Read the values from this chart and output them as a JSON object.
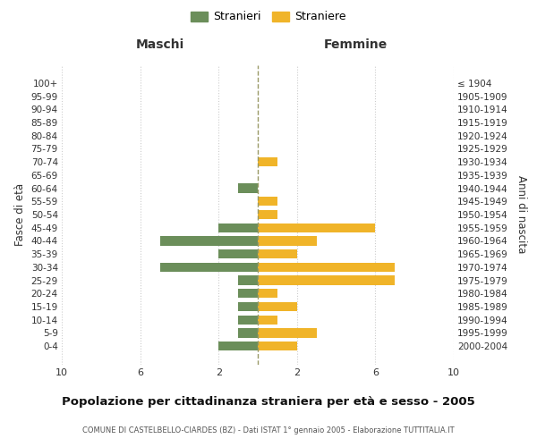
{
  "age_groups": [
    "100+",
    "95-99",
    "90-94",
    "85-89",
    "80-84",
    "75-79",
    "70-74",
    "65-69",
    "60-64",
    "55-59",
    "50-54",
    "45-49",
    "40-44",
    "35-39",
    "30-34",
    "25-29",
    "20-24",
    "15-19",
    "10-14",
    "5-9",
    "0-4"
  ],
  "birth_years": [
    "≤ 1904",
    "1905-1909",
    "1910-1914",
    "1915-1919",
    "1920-1924",
    "1925-1929",
    "1930-1934",
    "1935-1939",
    "1940-1944",
    "1945-1949",
    "1950-1954",
    "1955-1959",
    "1960-1964",
    "1965-1969",
    "1970-1974",
    "1975-1979",
    "1980-1984",
    "1985-1989",
    "1990-1994",
    "1995-1999",
    "2000-2004"
  ],
  "males": [
    0,
    0,
    0,
    0,
    0,
    0,
    0,
    0,
    1,
    0,
    0,
    2,
    5,
    2,
    5,
    1,
    1,
    1,
    1,
    1,
    2
  ],
  "females": [
    0,
    0,
    0,
    0,
    0,
    0,
    1,
    0,
    0,
    1,
    1,
    6,
    3,
    2,
    7,
    7,
    1,
    2,
    1,
    3,
    2
  ],
  "male_color": "#6b8e5a",
  "female_color": "#f0b429",
  "background_color": "#ffffff",
  "grid_color": "#cccccc",
  "center_line_color": "#999966",
  "title": "Popolazione per cittadinanza straniera per età e sesso - 2005",
  "subtitle": "COMUNE DI CASTELBELLO-CIARDES (BZ) - Dati ISTAT 1° gennaio 2005 - Elaborazione TUTTITALIA.IT",
  "xlabel_left": "Maschi",
  "xlabel_right": "Femmine",
  "ylabel_left": "Fasce di età",
  "ylabel_right": "Anni di nascita",
  "legend_male": "Stranieri",
  "legend_female": "Straniere",
  "xlim": 10
}
